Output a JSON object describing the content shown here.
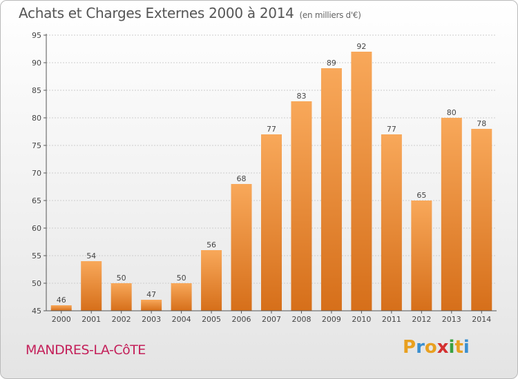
{
  "title": "Achats et Charges Externes 2000 à 2014",
  "subtitle": "(en milliers d'€)",
  "commune": "MANDRES-LA-CôTE",
  "brand": {
    "letters": [
      "P",
      "r",
      "o",
      "x",
      "i",
      "t",
      "i"
    ],
    "colors": [
      "#e8a020",
      "#3a8fd0",
      "#e8a020",
      "#d43030",
      "#3aa040",
      "#e8a020",
      "#3a8fd0"
    ]
  },
  "colors": {
    "bar_light": "#f8a85a",
    "bar_dark": "#d66f1a",
    "grid": "#cccccc",
    "axis": "#555555"
  },
  "chart_data": {
    "type": "bar",
    "categories": [
      "2000",
      "2001",
      "2002",
      "2003",
      "2004",
      "2005",
      "2006",
      "2007",
      "2008",
      "2009",
      "2010",
      "2011",
      "2012",
      "2013",
      "2014"
    ],
    "values": [
      46,
      54,
      50,
      47,
      50,
      56,
      68,
      77,
      83,
      89,
      92,
      77,
      65,
      80,
      78
    ],
    "ylim": [
      45,
      95
    ],
    "yticks": [
      45,
      50,
      55,
      60,
      65,
      70,
      75,
      80,
      85,
      90,
      95
    ],
    "grid": true,
    "title": "Achats et Charges Externes 2000 à 2014",
    "xlabel": "",
    "ylabel": ""
  }
}
